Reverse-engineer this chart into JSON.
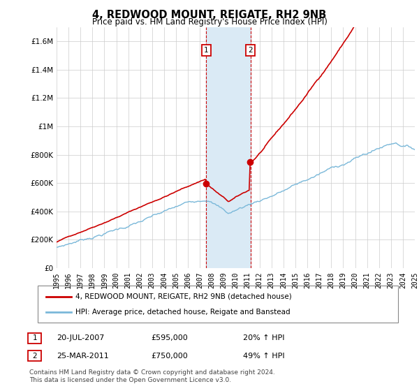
{
  "title": "4, REDWOOD MOUNT, REIGATE, RH2 9NB",
  "subtitle": "Price paid vs. HM Land Registry's House Price Index (HPI)",
  "legend_line1": "4, REDWOOD MOUNT, REIGATE, RH2 9NB (detached house)",
  "legend_line2": "HPI: Average price, detached house, Reigate and Banstead",
  "transaction1_date": "20-JUL-2007",
  "transaction1_price": "£595,000",
  "transaction1_hpi": "20% ↑ HPI",
  "transaction1_year": 2007.54,
  "transaction2_date": "25-MAR-2011",
  "transaction2_price": "£750,000",
  "transaction2_hpi": "49% ↑ HPI",
  "transaction2_year": 2011.23,
  "footnote_line1": "Contains HM Land Registry data © Crown copyright and database right 2024.",
  "footnote_line2": "This data is licensed under the Open Government Licence v3.0.",
  "hpi_color": "#7ab8d9",
  "price_color": "#cc0000",
  "highlight_color": "#daeaf5",
  "vline_color": "#cc0000",
  "border_color": "#cc0000",
  "ylim_min": 0,
  "ylim_max": 1700000,
  "yticks": [
    0,
    200000,
    400000,
    600000,
    800000,
    1000000,
    1200000,
    1400000,
    1600000
  ],
  "ytick_labels": [
    "£0",
    "£200K",
    "£400K",
    "£600K",
    "£800K",
    "£1M",
    "£1.2M",
    "£1.4M",
    "£1.6M"
  ],
  "xstart": 1995,
  "xend": 2025
}
